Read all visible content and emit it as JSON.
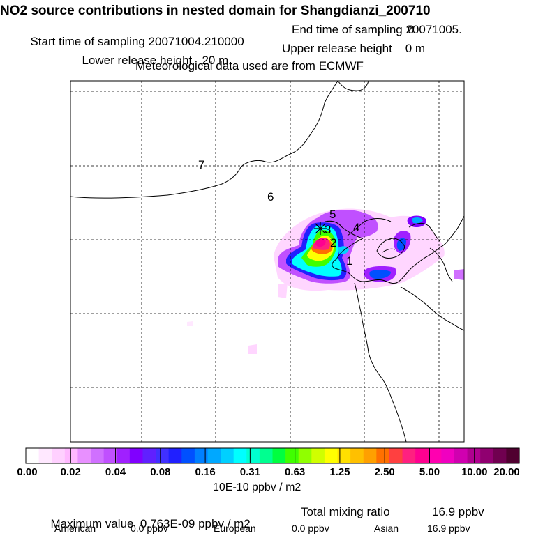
{
  "header": {
    "title": "NO2 source contributions in nested domain for Shangdianzi_200710",
    "start_label": "Start time of sampling 20071004.210000",
    "end_label": "End time of sampling 20071005.",
    "end_time_suffix": "0",
    "lower_release": "Lower release height   20 m",
    "upper_release": "Upper release height    0 m",
    "met_data": "Meteorological data used are from ECMWF"
  },
  "map": {
    "region_labels": [
      "1",
      "2",
      "3",
      "4",
      "5",
      "6",
      "7"
    ],
    "station_marker": "receptor-star"
  },
  "colorbar": {
    "tick_labels": [
      "0.00",
      "0.02",
      "0.04",
      "0.08",
      "0.16",
      "0.31",
      "0.63",
      "1.25",
      "2.50",
      "5.00",
      "10.00",
      "20.00"
    ],
    "colors": [
      "#ffffff",
      "#ffe8ff",
      "#ffd0ff",
      "#ffb8ff",
      "#e890ff",
      "#d070ff",
      "#c050ff",
      "#a020ff",
      "#8000ff",
      "#6020ff",
      "#4030ff",
      "#2020ff",
      "#0050ff",
      "#0080ff",
      "#00a8ff",
      "#00d0ff",
      "#00ffff",
      "#00ffd0",
      "#00ff90",
      "#00ff40",
      "#40ff00",
      "#90ff00",
      "#d0ff00",
      "#ffff00",
      "#ffe000",
      "#ffc000",
      "#ffa000",
      "#ff7000",
      "#ff4040",
      "#ff2080",
      "#ff0090",
      "#ff00b0",
      "#f000c0",
      "#d000b0",
      "#b00090",
      "#900070",
      "#700050",
      "#500030"
    ],
    "units": "10E-10 ppbv / m2"
  },
  "summary": {
    "max_value": "Maximum value  0.763E-09 ppbv / m2",
    "total_label": "Total mixing ratio",
    "total_value": "16.9 ppbv",
    "american_label": "American",
    "american_value": "0.0 ppbv",
    "european_label": "European",
    "european_value": "0.0 ppbv",
    "asian_label": "Asian",
    "asian_value": "16.9 ppbv"
  }
}
